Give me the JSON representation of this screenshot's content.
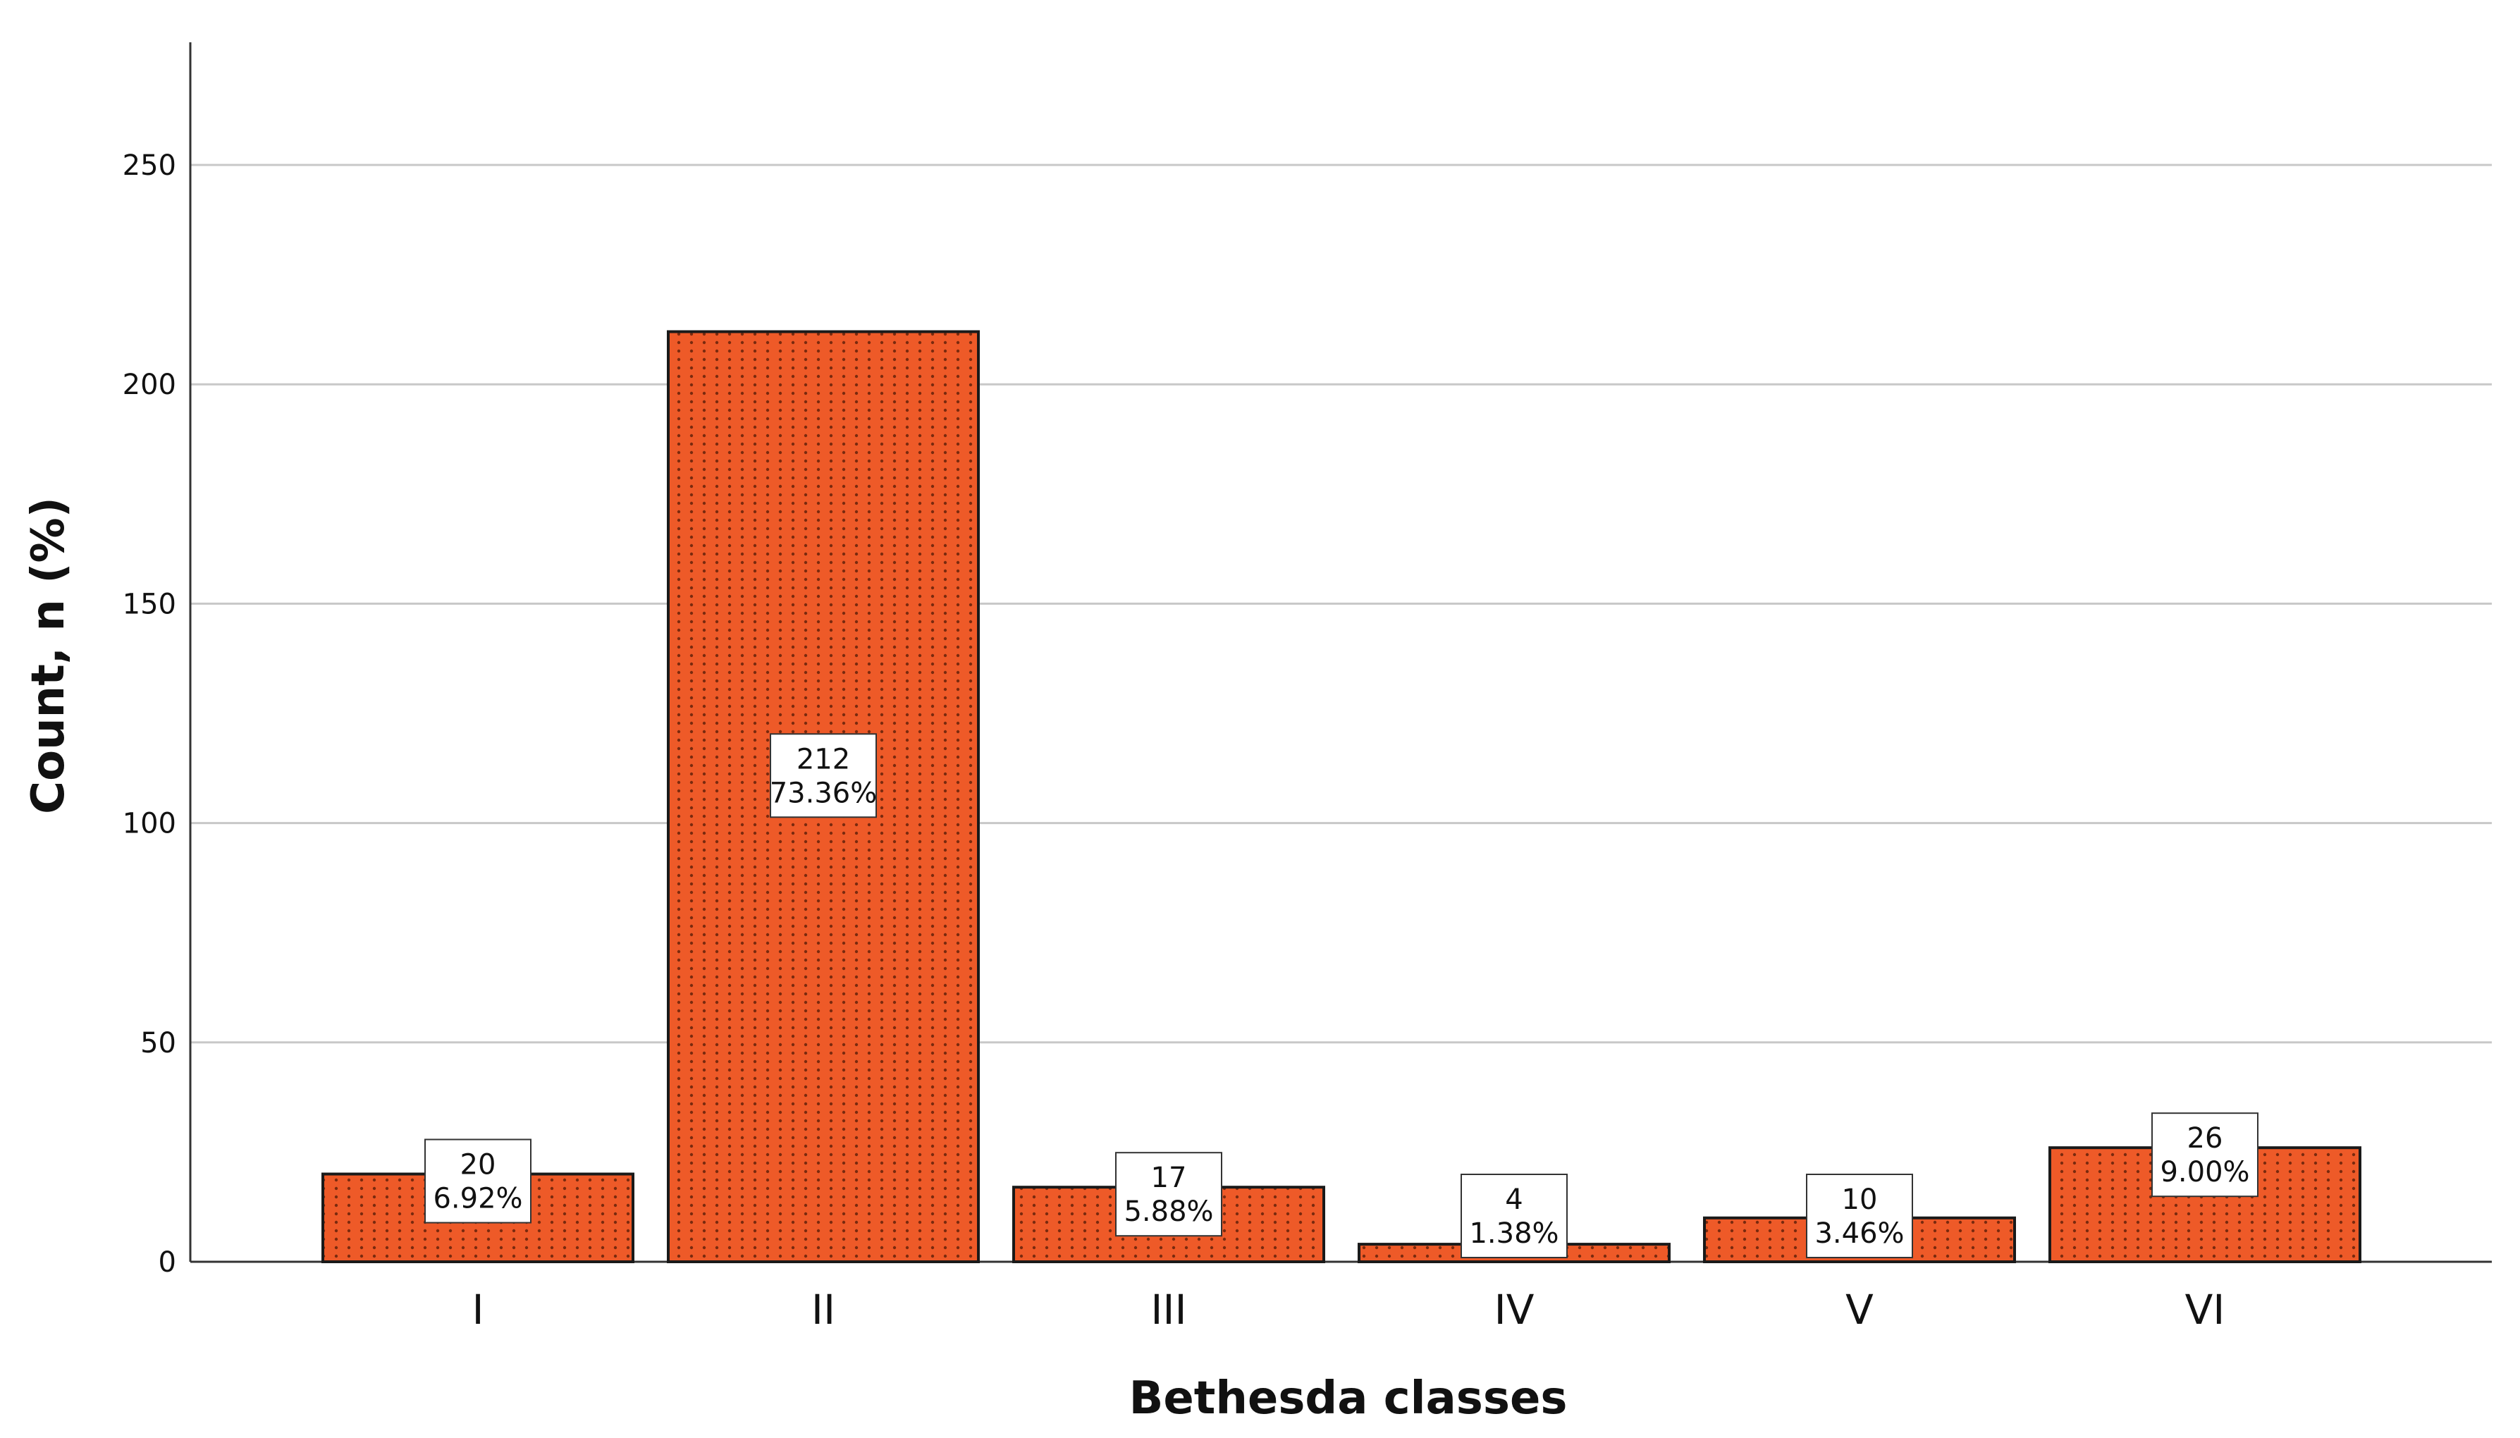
{
  "chart_data": {
    "type": "bar",
    "xlabel": "Bethesda classes",
    "ylabel": "Count, n (%)",
    "ylim": [
      0,
      275
    ],
    "yticks": [
      0,
      50,
      100,
      150,
      200,
      250
    ],
    "grid": true,
    "categories": [
      "I",
      "II",
      "III",
      "IV",
      "V",
      "VI"
    ],
    "values": [
      20,
      212,
      17,
      4,
      10,
      26
    ],
    "data_labels": [
      {
        "count": "20",
        "percent": "6.92%"
      },
      {
        "count": "212",
        "percent": "73.36%"
      },
      {
        "count": "17",
        "percent": "5.88%"
      },
      {
        "count": "4",
        "percent": "1.38%"
      },
      {
        "count": "10",
        "percent": "3.46%"
      },
      {
        "count": "26",
        "percent": "9.00%"
      }
    ],
    "colors": {
      "bar_fill": "#EE5A28",
      "bar_dots": "#7A2A0E",
      "bar_stroke": "#1a1a1a",
      "grid": "#c8c8c8",
      "axis": "#333333"
    }
  }
}
